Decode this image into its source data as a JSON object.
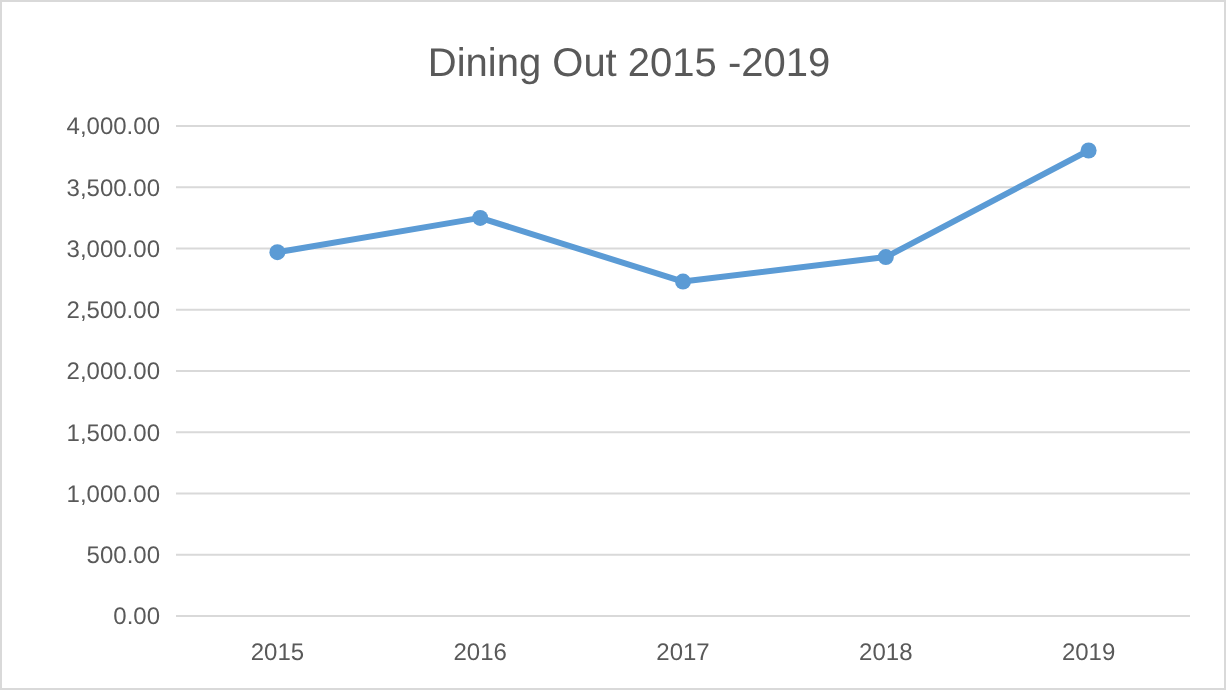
{
  "chart_data": {
    "type": "line",
    "title": "Dining Out 2015 -2019",
    "categories": [
      "2015",
      "2016",
      "2017",
      "2018",
      "2019"
    ],
    "series": [
      {
        "color": "#5b9bd5",
        "values": [
          2970,
          3250,
          2730,
          2930,
          3800
        ]
      }
    ],
    "ylim": [
      0,
      4000
    ],
    "yticks": [
      {
        "value": 0,
        "label": "0.00"
      },
      {
        "value": 500,
        "label": "500.00"
      },
      {
        "value": 1000,
        "label": "1,000.00"
      },
      {
        "value": 1500,
        "label": "1,500.00"
      },
      {
        "value": 2000,
        "label": "2,000.00"
      },
      {
        "value": 2500,
        "label": "2,500.00"
      },
      {
        "value": 3000,
        "label": "3,000.00"
      },
      {
        "value": 3500,
        "label": "3,500.00"
      },
      {
        "value": 4000,
        "label": "4,000.00"
      }
    ],
    "grid": "y",
    "marker": "circle",
    "line_style": "solid"
  }
}
